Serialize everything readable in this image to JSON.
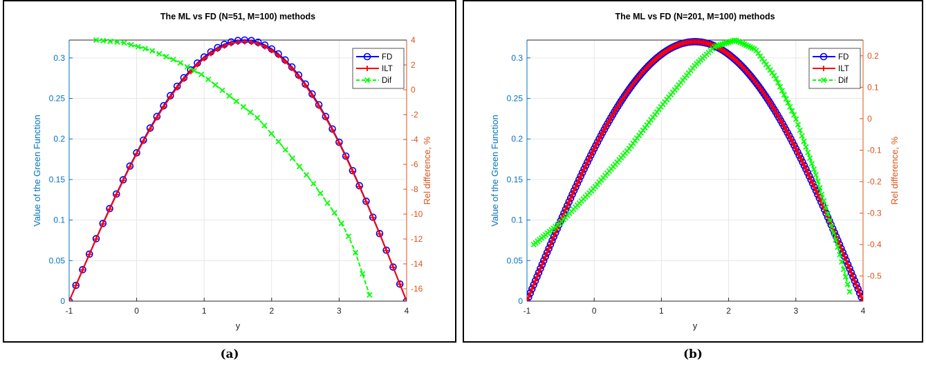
{
  "captions": [
    "(a)",
    "(b)"
  ],
  "colors": {
    "left_axis": "#0072BD",
    "right_axis": "#D95319",
    "fd": "#0000FF",
    "ilt": "#FF0000",
    "dif": "#00FF00",
    "grid": "#e6e6e6"
  },
  "chart_data": [
    {
      "type": "line",
      "title": "The ML vs FD (N=51, M=100) methods",
      "xlabel": "y",
      "ylabel_left": "Value of the Green Function",
      "ylabel_right": "Rel difference, %",
      "xlim": [
        -1,
        4
      ],
      "ylim_left": [
        0,
        0.322
      ],
      "ylim_right": [
        -17,
        4
      ],
      "xticks": [
        -1,
        0,
        1,
        2,
        3,
        4
      ],
      "yticks_left": [
        0,
        0.05,
        0.1,
        0.15,
        0.2,
        0.25,
        0.3
      ],
      "yticks_right": [
        -16,
        -14,
        -12,
        -10,
        -8,
        -6,
        -4,
        -2,
        0,
        2,
        4
      ],
      "grid": true,
      "legend_position": "top-right",
      "legend": [
        "FD",
        "ILT",
        "Dif"
      ],
      "series": [
        {
          "name": "FD",
          "axis": "left",
          "marker": "o",
          "x_range": [
            -1,
            4
          ],
          "n_points": 51,
          "peak_x": 1.6,
          "peak_y": 0.322,
          "y_start": 0,
          "y_end": 0
        },
        {
          "name": "ILT",
          "axis": "left",
          "marker": "+",
          "x_range": [
            -1,
            4
          ],
          "n_points": 51,
          "peak_x": 1.6,
          "peak_y": 0.32,
          "y_start": 0,
          "y_end": 0
        },
        {
          "name": "Dif",
          "axis": "right",
          "marker": "x",
          "x": [
            -0.6,
            -0.2,
            0.2,
            0.6,
            1.0,
            1.4,
            1.8,
            2.2,
            2.6,
            3.0,
            3.2,
            3.45
          ],
          "y": [
            4.0,
            3.8,
            3.2,
            2.3,
            1.1,
            -0.6,
            -2.3,
            -4.8,
            -7.4,
            -10.4,
            -12.4,
            -16.5
          ]
        }
      ]
    },
    {
      "type": "line",
      "title": "The ML vs FD (N=201, M=100) methods",
      "xlabel": "y",
      "ylabel_left": "Value of the Green Function",
      "ylabel_right": "Rel difference, %",
      "xlim": [
        -1,
        4
      ],
      "ylim_left": [
        0,
        0.322
      ],
      "ylim_right": [
        -0.58,
        0.25
      ],
      "xticks": [
        -1,
        0,
        1,
        2,
        3,
        4
      ],
      "yticks_left": [
        0,
        0.05,
        0.1,
        0.15,
        0.2,
        0.25,
        0.3
      ],
      "yticks_right": [
        -0.5,
        -0.4,
        -0.3,
        -0.2,
        -0.1,
        0,
        0.1,
        0.2
      ],
      "grid": true,
      "legend_position": "top-right",
      "legend": [
        "FD",
        "ILT",
        "Dif"
      ],
      "series": [
        {
          "name": "FD",
          "axis": "left",
          "marker": "o",
          "x_range": [
            -1,
            4
          ],
          "n_points": 201,
          "peak_x": 1.5,
          "peak_y": 0.32,
          "y_start": 0,
          "y_end": 0
        },
        {
          "name": "ILT",
          "axis": "left",
          "marker": "+",
          "x_range": [
            -1,
            4
          ],
          "n_points": 201,
          "peak_x": 1.5,
          "peak_y": 0.32,
          "y_start": 0,
          "y_end": 0
        },
        {
          "name": "Dif",
          "axis": "right",
          "marker": "x",
          "x": [
            -0.9,
            -0.5,
            0.0,
            0.5,
            1.0,
            1.5,
            1.8,
            2.1,
            2.4,
            2.7,
            3.0,
            3.3,
            3.6,
            3.8
          ],
          "y": [
            -0.4,
            -0.33,
            -0.22,
            -0.1,
            0.04,
            0.17,
            0.23,
            0.25,
            0.22,
            0.13,
            0.0,
            -0.18,
            -0.39,
            -0.55
          ]
        }
      ]
    }
  ]
}
